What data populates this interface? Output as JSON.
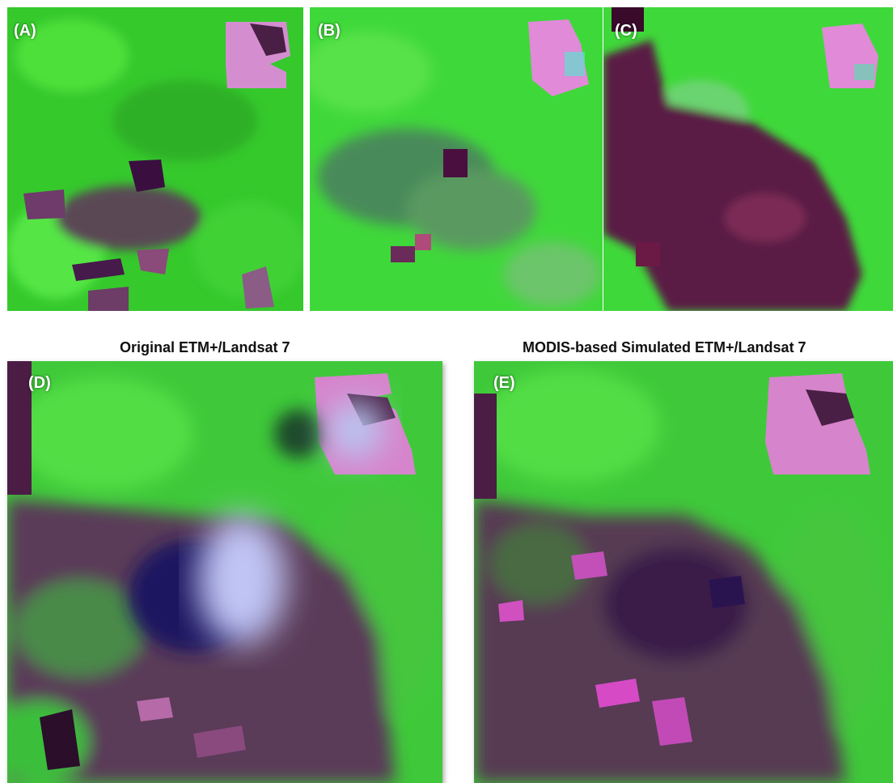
{
  "panels": {
    "a": {
      "label": "(A)"
    },
    "b": {
      "label": "(B)"
    },
    "c": {
      "label": "(C)"
    },
    "d": {
      "label": "(D)",
      "caption": "Original ETM+/Landsat 7"
    },
    "e": {
      "label": "(E)",
      "caption": "MODIS-based Simulated ETM+/Landsat 7"
    }
  },
  "colors": {
    "vegetation": "#35d62f",
    "vegetation_light": "#5cf048",
    "clearing": "#6a2a5a",
    "bare_field": "#e07ad8",
    "dark_patch": "#3a0f35",
    "cloud": "#b6b8f0",
    "cloud_shadow": "#1d1a6a"
  }
}
